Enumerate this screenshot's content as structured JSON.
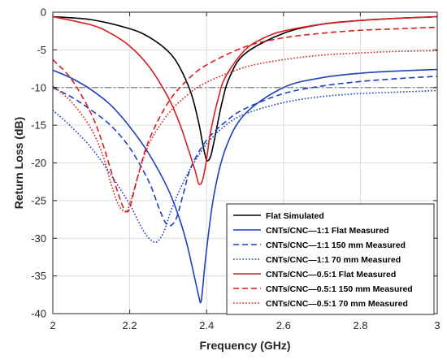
{
  "chart_data": {
    "type": "line",
    "title": "",
    "xlabel": "Frequency (GHz)",
    "ylabel": "Return Loss (dB)",
    "xlim": [
      2,
      3
    ],
    "ylim": [
      -40,
      0
    ],
    "x_ticks": [
      "2",
      "2.2",
      "2.4",
      "2.6",
      "2.8",
      "3"
    ],
    "y_ticks": [
      "0",
      "-5",
      "-10",
      "-15",
      "-20",
      "-25",
      "-30",
      "-35",
      "-40"
    ],
    "grid": true,
    "legend_position": "bottom-right",
    "reference_line": {
      "y": -10,
      "color": "#7f7f7f",
      "style": "dash-dot"
    },
    "series": [
      {
        "name": "Flat Simulated",
        "color": "#000000",
        "style": "solid",
        "x": [
          2.0,
          2.1,
          2.2,
          2.25,
          2.3,
          2.33,
          2.36,
          2.38,
          2.39,
          2.4,
          2.41,
          2.42,
          2.44,
          2.46,
          2.5,
          2.6,
          2.7,
          2.8,
          2.9,
          3.0
        ],
        "y": [
          -0.6,
          -1.0,
          -2.2,
          -3.3,
          -5.2,
          -7.3,
          -10.8,
          -14.8,
          -17.5,
          -19.6,
          -19.2,
          -17.0,
          -12.0,
          -8.6,
          -5.5,
          -2.8,
          -1.6,
          -1.1,
          -0.8,
          -0.6
        ]
      },
      {
        "name": "CNTs/CNC—1:1 Flat Measured",
        "color": "#1f3fbf",
        "style": "solid",
        "x": [
          2.0,
          2.05,
          2.1,
          2.15,
          2.2,
          2.25,
          2.3,
          2.33,
          2.35,
          2.37,
          2.38,
          2.385,
          2.39,
          2.4,
          2.42,
          2.45,
          2.5,
          2.6,
          2.7,
          2.8,
          2.9,
          3.0
        ],
        "y": [
          -7.7,
          -8.8,
          -10.3,
          -12.3,
          -15.2,
          -18.8,
          -23.5,
          -27.5,
          -31.0,
          -35.5,
          -37.8,
          -38.5,
          -36.5,
          -31.5,
          -24.0,
          -18.0,
          -13.5,
          -10.0,
          -8.7,
          -8.1,
          -7.8,
          -7.6
        ]
      },
      {
        "name": "CNTs/CNC—1:1 150 mm Measured",
        "color": "#1f3fbf",
        "style": "dashed",
        "x": [
          2.0,
          2.05,
          2.1,
          2.15,
          2.2,
          2.25,
          2.28,
          2.3,
          2.32,
          2.34,
          2.36,
          2.4,
          2.45,
          2.5,
          2.6,
          2.7,
          2.8,
          2.9,
          3.0
        ],
        "y": [
          -10.0,
          -11.3,
          -13.0,
          -15.0,
          -18.0,
          -22.5,
          -26.5,
          -28.3,
          -27.5,
          -24.0,
          -20.5,
          -17.0,
          -14.5,
          -12.8,
          -10.8,
          -9.8,
          -9.2,
          -8.8,
          -8.5
        ]
      },
      {
        "name": "CNTs/CNC—1:1 70 mm Measured",
        "color": "#1f3fbf",
        "style": "dotted",
        "x": [
          2.0,
          2.05,
          2.1,
          2.15,
          2.2,
          2.23,
          2.25,
          2.27,
          2.29,
          2.31,
          2.35,
          2.4,
          2.45,
          2.5,
          2.6,
          2.7,
          2.8,
          2.9,
          3.0
        ],
        "y": [
          -13.0,
          -15.3,
          -18.0,
          -21.5,
          -25.5,
          -28.5,
          -30.0,
          -30.5,
          -29.0,
          -26.0,
          -21.5,
          -17.5,
          -15.0,
          -13.5,
          -12.0,
          -11.2,
          -10.8,
          -10.6,
          -10.4
        ]
      },
      {
        "name": "CNTs/CNC—0.5:1 Flat Measured",
        "color": "#d91e1e",
        "style": "solid",
        "x": [
          2.0,
          2.1,
          2.15,
          2.2,
          2.25,
          2.3,
          2.33,
          2.35,
          2.37,
          2.38,
          2.39,
          2.4,
          2.41,
          2.43,
          2.45,
          2.5,
          2.55,
          2.6,
          2.7,
          2.8,
          2.9,
          3.0
        ],
        "y": [
          -0.6,
          -1.7,
          -2.8,
          -4.5,
          -7.2,
          -11.3,
          -14.8,
          -17.8,
          -21.0,
          -22.8,
          -22.2,
          -19.5,
          -16.0,
          -11.5,
          -8.5,
          -5.0,
          -3.4,
          -2.5,
          -1.6,
          -1.1,
          -0.8,
          -0.6
        ]
      },
      {
        "name": "CNTs/CNC—0.5:1 150 mm Measured",
        "color": "#d91e1e",
        "style": "dashed",
        "x": [
          2.0,
          2.05,
          2.1,
          2.13,
          2.16,
          2.18,
          2.19,
          2.2,
          2.22,
          2.25,
          2.3,
          2.35,
          2.4,
          2.5,
          2.6,
          2.7,
          2.8,
          2.9,
          3.0
        ],
        "y": [
          -6.3,
          -9.0,
          -13.5,
          -17.5,
          -22.5,
          -25.5,
          -26.4,
          -26.0,
          -22.0,
          -17.0,
          -12.0,
          -9.0,
          -7.0,
          -4.6,
          -3.4,
          -2.8,
          -2.4,
          -2.2,
          -2.0
        ]
      },
      {
        "name": "CNTs/CNC—0.5:1 70 mm Measured",
        "color": "#d91e1e",
        "style": "dotted",
        "x": [
          2.0,
          2.05,
          2.1,
          2.13,
          2.15,
          2.17,
          2.19,
          2.2,
          2.22,
          2.25,
          2.3,
          2.35,
          2.4,
          2.5,
          2.6,
          2.7,
          2.8,
          2.9,
          3.0
        ],
        "y": [
          -9.8,
          -12.0,
          -15.5,
          -19.0,
          -22.5,
          -25.5,
          -26.5,
          -25.5,
          -22.0,
          -17.5,
          -13.5,
          -11.0,
          -9.3,
          -7.3,
          -6.3,
          -5.7,
          -5.4,
          -5.2,
          -5.1
        ]
      }
    ]
  }
}
